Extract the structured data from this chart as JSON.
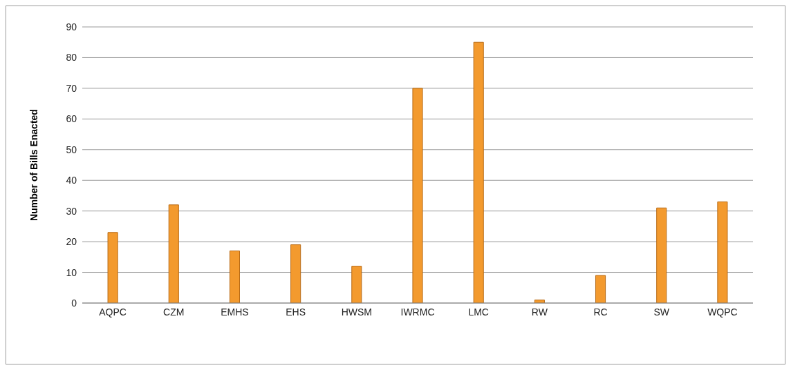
{
  "chart_data": {
    "type": "bar",
    "ylabel": "Number of Bills Enacted",
    "categories": [
      "AQPC",
      "CZM",
      "EMHS",
      "EHS",
      "HWSM",
      "IWRMC",
      "LMC",
      "RW",
      "RC",
      "SW",
      "WQPC"
    ],
    "values": [
      23,
      32,
      17,
      19,
      12,
      70,
      85,
      1,
      9,
      31,
      33
    ],
    "color": "#f39a2e",
    "ylim": [
      0,
      90
    ],
    "yticks": [
      0,
      10,
      20,
      30,
      40,
      50,
      60,
      70,
      80,
      90
    ],
    "grid": "y"
  }
}
